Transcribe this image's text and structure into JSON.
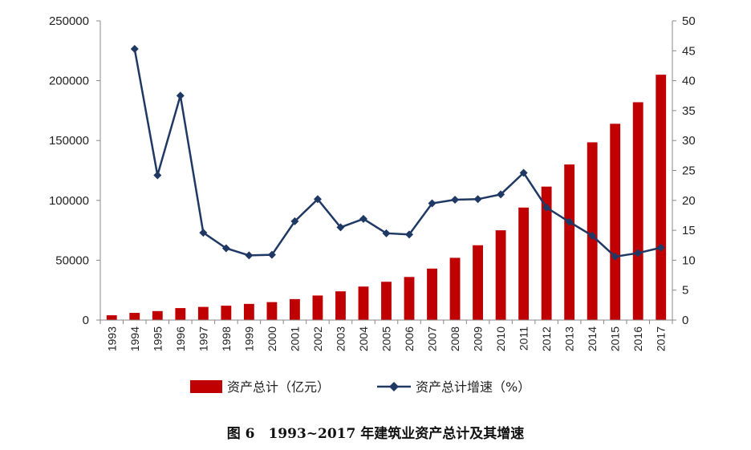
{
  "chart_data": {
    "type": "bar",
    "categories": [
      "1993",
      "1994",
      "1995",
      "1996",
      "1997",
      "1998",
      "1999",
      "2000",
      "2001",
      "2002",
      "2003",
      "2004",
      "2005",
      "2006",
      "2007",
      "2008",
      "2009",
      "2010",
      "2011",
      "2012",
      "2013",
      "2014",
      "2015",
      "2016",
      "2017"
    ],
    "series": [
      {
        "name": "资产总计（亿元）",
        "type": "bar",
        "axis": "left",
        "color": "#c00000",
        "values": [
          4000,
          6000,
          7500,
          10000,
          11000,
          12000,
          13500,
          15000,
          17500,
          20500,
          24000,
          28000,
          32000,
          36000,
          43000,
          52000,
          62500,
          75000,
          94000,
          111500,
          130000,
          148500,
          164000,
          182000,
          205000
        ]
      },
      {
        "name": "资产总计增速（%）",
        "type": "line",
        "axis": "right",
        "color": "#1f3864",
        "marker": "diamond",
        "values": [
          null,
          45.3,
          24.2,
          37.5,
          14.6,
          12.0,
          10.8,
          10.9,
          16.5,
          20.2,
          15.5,
          16.9,
          14.5,
          14.3,
          19.5,
          20.1,
          20.2,
          21.0,
          24.6,
          18.8,
          16.4,
          14.1,
          10.6,
          11.2,
          12.1
        ]
      }
    ],
    "y_left": {
      "min": 0,
      "max": 250000,
      "ticks": [
        0,
        50000,
        100000,
        150000,
        200000,
        250000
      ]
    },
    "y_right": {
      "min": 0,
      "max": 50,
      "ticks": [
        0,
        5,
        10,
        15,
        20,
        25,
        30,
        35,
        40,
        45,
        50
      ]
    },
    "legend_position": "bottom",
    "grid": false,
    "caption": "图 6　1993~2017 年建筑业资产总计及其增速"
  }
}
